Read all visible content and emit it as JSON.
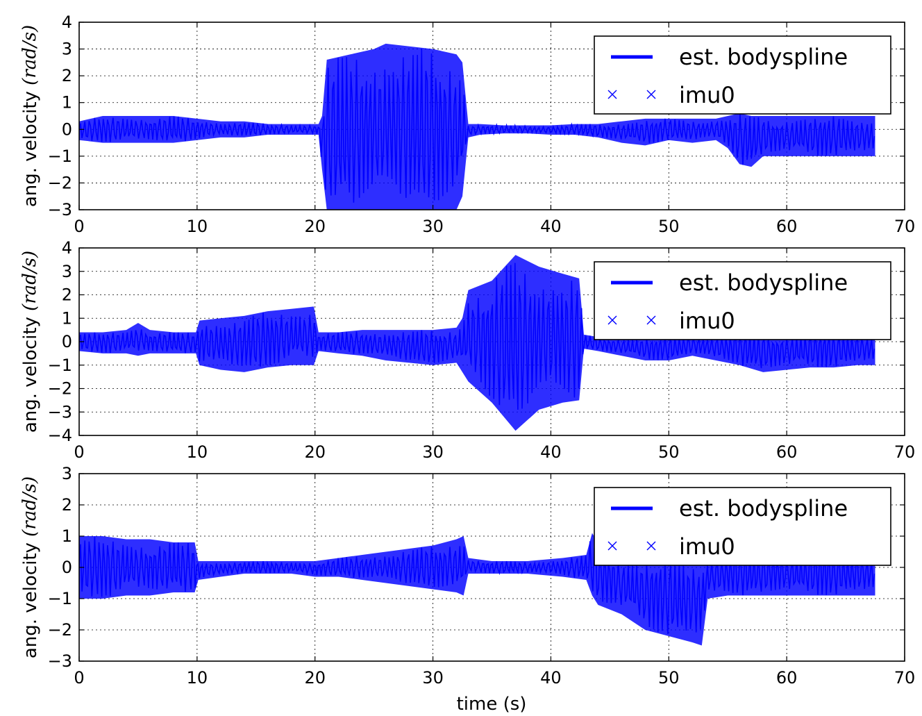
{
  "chart_data": [
    {
      "type": "line",
      "xlabel": "time (s)",
      "ylabel": "ang. velocity",
      "ylabel_unit": "(rad/s)",
      "xlim": [
        0,
        70
      ],
      "ylim": [
        -3,
        4
      ],
      "xticks": [
        0,
        10,
        20,
        30,
        40,
        50,
        60,
        70
      ],
      "yticks": [
        -3,
        -2,
        -1,
        0,
        1,
        2,
        3,
        4
      ],
      "grid": true,
      "legend_position": "top-right",
      "series": [
        {
          "name": "est. bodyspline",
          "style": "line",
          "color": "#0000ff"
        },
        {
          "name": "imu0",
          "style": "x-marker",
          "color": "#0000ff"
        }
      ],
      "envelope": {
        "x": [
          0,
          2,
          4,
          6,
          8,
          10,
          12,
          14,
          16,
          18,
          20.3,
          20.6,
          21,
          23,
          25,
          26,
          28,
          30,
          32,
          32.5,
          33,
          34,
          36,
          38,
          40,
          42,
          44,
          46,
          48,
          50,
          52,
          54,
          55,
          56,
          57,
          58,
          60,
          62,
          64,
          66,
          67.5
        ],
        "upper": [
          0.3,
          0.5,
          0.5,
          0.5,
          0.5,
          0.4,
          0.3,
          0.3,
          0.2,
          0.2,
          0.2,
          0.5,
          2.6,
          2.8,
          3.0,
          3.2,
          3.1,
          3.0,
          2.8,
          2.5,
          0.2,
          0.2,
          0.15,
          0.15,
          0.15,
          0.2,
          0.2,
          0.3,
          0.4,
          0.4,
          0.4,
          0.4,
          0.5,
          0.6,
          0.5,
          0.5,
          0.5,
          0.5,
          0.5,
          0.5,
          0.5
        ],
        "lower": [
          -0.4,
          -0.5,
          -0.5,
          -0.5,
          -0.5,
          -0.4,
          -0.3,
          -0.3,
          -0.2,
          -0.2,
          -0.2,
          -1.5,
          -3.0,
          -3.0,
          -3.0,
          -3.0,
          -3.0,
          -3.0,
          -3.0,
          -2.5,
          -0.3,
          -0.2,
          -0.15,
          -0.15,
          -0.2,
          -0.2,
          -0.3,
          -0.5,
          -0.6,
          -0.4,
          -0.5,
          -0.4,
          -0.7,
          -1.3,
          -1.4,
          -1.0,
          -1.0,
          -1.0,
          -1.0,
          -1.0,
          -1.0
        ]
      }
    },
    {
      "type": "line",
      "xlabel": "time (s)",
      "ylabel": "ang. velocity",
      "ylabel_unit": "(rad/s)",
      "xlim": [
        0,
        70
      ],
      "ylim": [
        -4,
        4
      ],
      "xticks": [
        0,
        10,
        20,
        30,
        40,
        50,
        60,
        70
      ],
      "yticks": [
        -4,
        -3,
        -2,
        -1,
        0,
        1,
        2,
        3,
        4
      ],
      "grid": true,
      "legend_position": "top-right",
      "series": [
        {
          "name": "est. bodyspline",
          "style": "line",
          "color": "#0000ff"
        },
        {
          "name": "imu0",
          "style": "x-marker",
          "color": "#0000ff"
        }
      ],
      "envelope": {
        "x": [
          0,
          2,
          4,
          5,
          6,
          8,
          9.9,
          10.2,
          12,
          14,
          16,
          18,
          19.9,
          20.3,
          22,
          24,
          26,
          28,
          30,
          32,
          32.5,
          33,
          35,
          37,
          39,
          41,
          42.4,
          42.8,
          44,
          46,
          48,
          50,
          52,
          54,
          56,
          58,
          60,
          62,
          64,
          66,
          67.5
        ],
        "upper": [
          0.4,
          0.4,
          0.5,
          0.8,
          0.5,
          0.4,
          0.4,
          0.9,
          1.0,
          1.1,
          1.3,
          1.4,
          1.5,
          0.4,
          0.4,
          0.5,
          0.5,
          0.5,
          0.5,
          0.6,
          1.0,
          2.2,
          2.6,
          3.7,
          3.2,
          2.9,
          2.7,
          0.3,
          0.2,
          0.2,
          0.2,
          0.2,
          0.3,
          0.3,
          0.4,
          0.4,
          0.4,
          0.4,
          0.4,
          0.4,
          0.4
        ],
        "lower": [
          -0.4,
          -0.5,
          -0.5,
          -0.6,
          -0.5,
          -0.5,
          -0.5,
          -1.0,
          -1.2,
          -1.3,
          -1.1,
          -1.0,
          -1.0,
          -0.4,
          -0.5,
          -0.6,
          -0.8,
          -0.9,
          -1.0,
          -0.9,
          -1.3,
          -1.7,
          -2.6,
          -3.8,
          -2.9,
          -2.6,
          -2.5,
          -0.3,
          -0.4,
          -0.6,
          -0.8,
          -0.8,
          -0.6,
          -0.8,
          -1.0,
          -1.3,
          -1.2,
          -1.1,
          -1.1,
          -1.0,
          -1.0
        ]
      }
    },
    {
      "type": "line",
      "xlabel": "time (s)",
      "ylabel": "ang. velocity",
      "ylabel_unit": "(rad/s)",
      "xlim": [
        0,
        70
      ],
      "ylim": [
        -3,
        3
      ],
      "xticks": [
        0,
        10,
        20,
        30,
        40,
        50,
        60,
        70
      ],
      "yticks": [
        -3,
        -2,
        -1,
        0,
        1,
        2,
        3
      ],
      "grid": true,
      "legend_position": "top-right",
      "series": [
        {
          "name": "est. bodyspline",
          "style": "line",
          "color": "#0000ff"
        },
        {
          "name": "imu0",
          "style": "x-marker",
          "color": "#0000ff"
        }
      ],
      "envelope": {
        "x": [
          0,
          2,
          4,
          6,
          8,
          9.8,
          10.1,
          12,
          14,
          16,
          18,
          20,
          22,
          24,
          26,
          28,
          30,
          32,
          32.6,
          33,
          35,
          38,
          41,
          43,
          43.5,
          44,
          46,
          48,
          50,
          52,
          52.8,
          53.3,
          55,
          57,
          59,
          61,
          63,
          65,
          67.5
        ],
        "upper": [
          1.0,
          1.0,
          0.9,
          0.9,
          0.8,
          0.8,
          0.2,
          0.2,
          0.2,
          0.2,
          0.2,
          0.2,
          0.3,
          0.4,
          0.5,
          0.6,
          0.7,
          0.9,
          1.0,
          0.3,
          0.2,
          0.2,
          0.3,
          0.4,
          1.1,
          0.8,
          0.4,
          0.3,
          0.3,
          0.3,
          0.3,
          0.4,
          0.5,
          0.5,
          0.5,
          0.5,
          0.5,
          0.5,
          0.5
        ],
        "lower": [
          -1.0,
          -1.0,
          -0.9,
          -0.9,
          -0.8,
          -0.8,
          -0.4,
          -0.3,
          -0.2,
          -0.2,
          -0.2,
          -0.3,
          -0.3,
          -0.4,
          -0.5,
          -0.6,
          -0.7,
          -0.8,
          -0.9,
          -0.2,
          -0.2,
          -0.2,
          -0.3,
          -0.4,
          -0.9,
          -1.2,
          -1.5,
          -2.0,
          -2.2,
          -2.4,
          -2.5,
          -1.0,
          -0.9,
          -0.9,
          -0.9,
          -0.9,
          -0.9,
          -0.9,
          -0.9
        ]
      }
    }
  ]
}
